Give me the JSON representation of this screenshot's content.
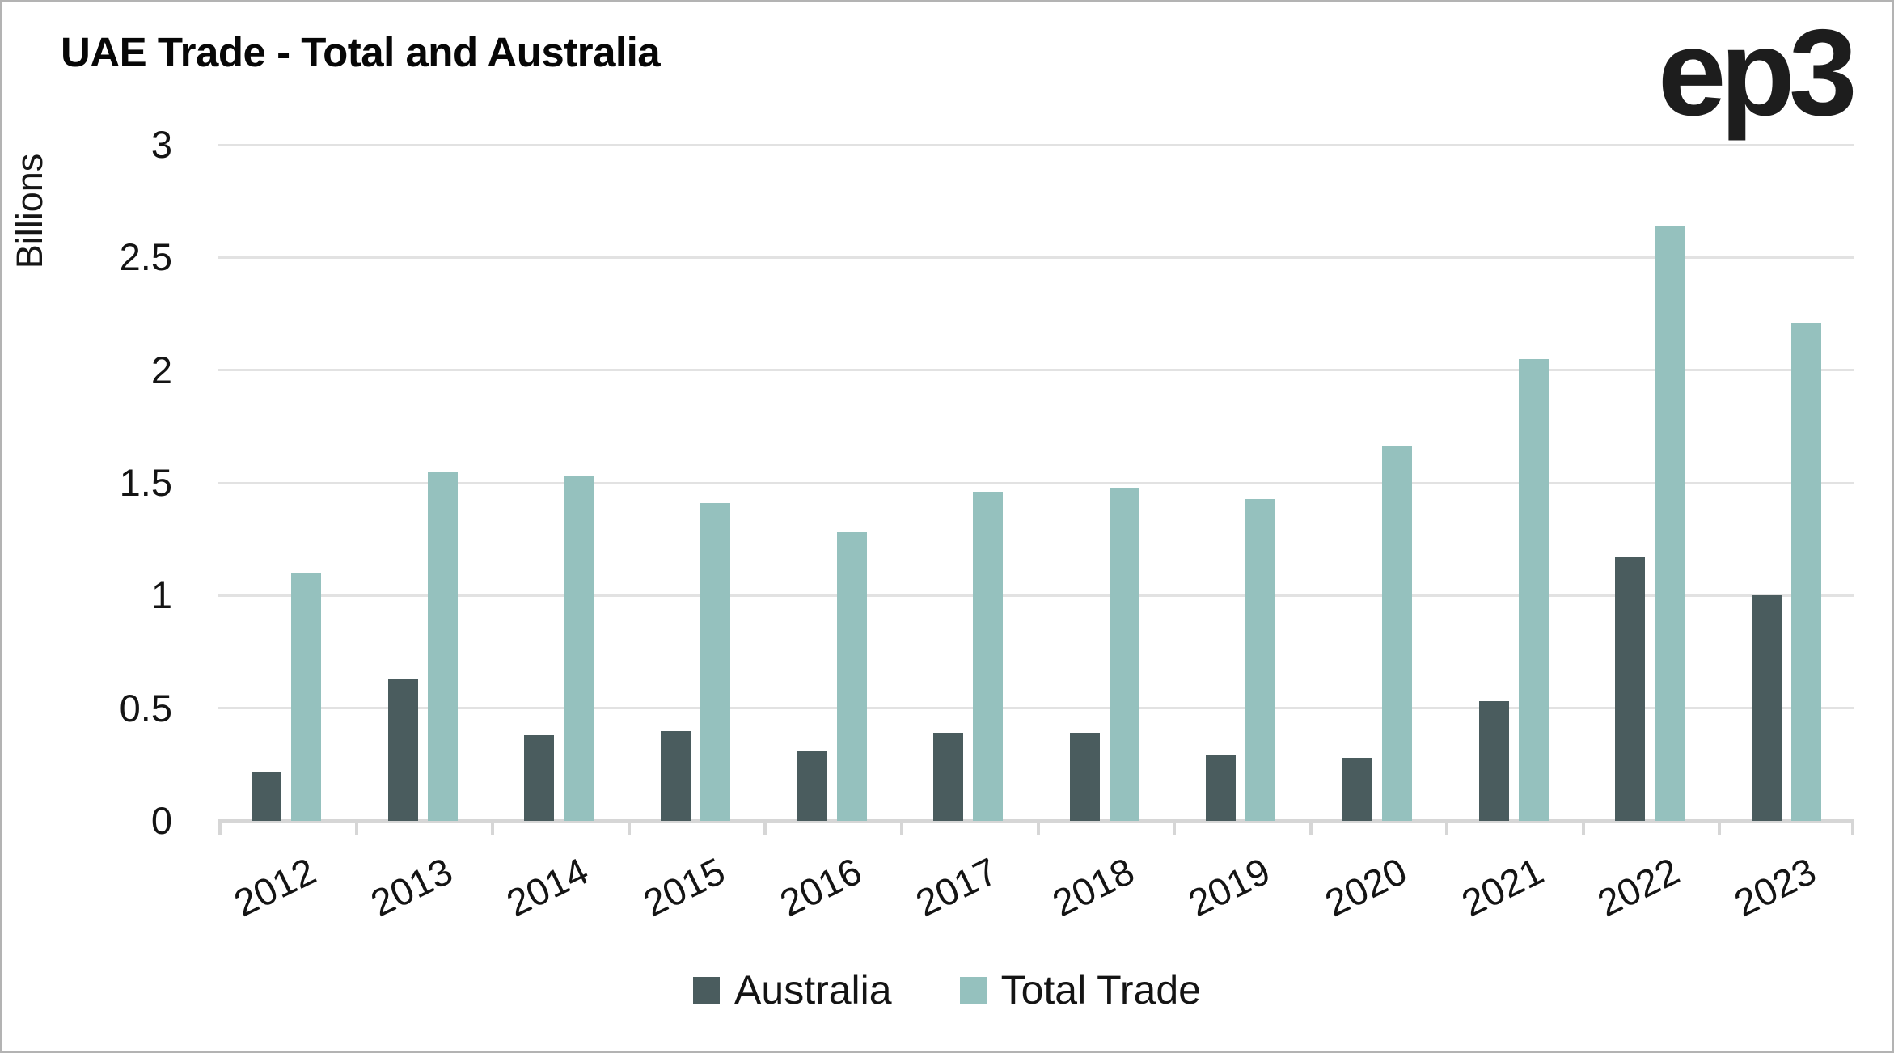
{
  "title": "UAE Trade - Total and Australia",
  "logo_text": "ep3",
  "chart_data": {
    "type": "bar",
    "title": "UAE Trade - Total and Australia",
    "xlabel": "",
    "ylabel": "Billions",
    "ylim": [
      0,
      3
    ],
    "yticks": [
      0,
      0.5,
      1,
      1.5,
      2,
      2.5,
      3
    ],
    "ytick_labels": [
      "0",
      "0.5",
      "1",
      "1.5",
      "2",
      "2.5",
      "3"
    ],
    "grid": true,
    "legend_position": "bottom",
    "categories": [
      "2012",
      "2013",
      "2014",
      "2015",
      "2016",
      "2017",
      "2018",
      "2019",
      "2020",
      "2021",
      "2022",
      "2023"
    ],
    "series": [
      {
        "name": "Australia",
        "color": "#4a5c5e",
        "values": [
          0.22,
          0.63,
          0.38,
          0.4,
          0.31,
          0.39,
          0.39,
          0.29,
          0.28,
          0.53,
          1.17,
          1.0
        ]
      },
      {
        "name": "Total Trade",
        "color": "#95c1be",
        "values": [
          1.1,
          1.55,
          1.53,
          1.41,
          1.28,
          1.46,
          1.48,
          1.43,
          1.66,
          2.05,
          2.64,
          2.21
        ]
      }
    ]
  },
  "colors": {
    "gridline": "#e2e2e2",
    "axis_line": "#d6d6d6",
    "text": "#141414",
    "background": "#ffffff",
    "frame_border": "#b3b3b3"
  }
}
